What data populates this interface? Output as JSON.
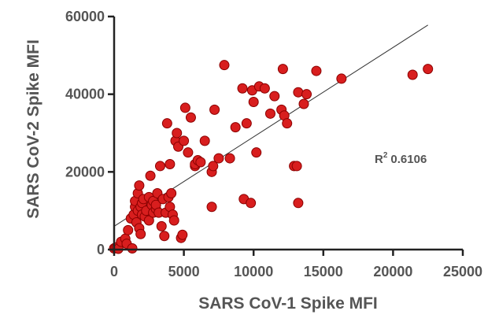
{
  "chart_data": {
    "type": "scatter",
    "title": "",
    "xlabel": "SARS CoV-1 Spike MFI",
    "ylabel": "SARS CoV-2 Spike MFI",
    "xlim": [
      0,
      25000
    ],
    "ylim": [
      0,
      60000
    ],
    "xticks": [
      0,
      5000,
      10000,
      15000,
      20000,
      25000
    ],
    "yticks": [
      0,
      20000,
      40000,
      60000
    ],
    "grid": false,
    "legend": "none",
    "annotation": {
      "r_label": "R",
      "r_sup": "2",
      "r_value": "0.6106"
    },
    "point_color": "#d81e1e",
    "line_color": "#333333",
    "fit_line": {
      "x": [
        0,
        22500
      ],
      "y": [
        6000,
        57800
      ]
    },
    "series": [
      {
        "x": [
          0,
          100,
          200,
          300,
          500,
          800,
          900,
          1000,
          1200,
          1300,
          1400,
          1500,
          1500,
          1600,
          1700,
          1700,
          1800,
          1800,
          1900,
          1900,
          2000,
          2000,
          2100,
          2200,
          2300,
          2500,
          2500,
          2600,
          2700,
          2800,
          2800,
          3000,
          3000,
          3100,
          3200,
          3300,
          3400,
          3500,
          3600,
          3700,
          3800,
          3900,
          4000,
          4000,
          4100,
          4200,
          4300,
          4400,
          4500,
          4600,
          4800,
          4900,
          5000,
          5100,
          5300,
          5500,
          5800,
          5800,
          6000,
          6200,
          6500,
          7000,
          7000,
          7100,
          7200,
          7500,
          7900,
          8300,
          8700,
          9200,
          9300,
          9500,
          9800,
          9900,
          10000,
          10200,
          10400,
          10800,
          11200,
          11500,
          12000,
          12100,
          12200,
          12400,
          12900,
          13100,
          13200,
          13200,
          13600,
          13800,
          14500,
          16300,
          21400,
          22500
        ],
        "y": [
          300,
          500,
          600,
          200,
          2000,
          2800,
          1500,
          5000,
          8000,
          300,
          9000,
          11000,
          12500,
          7000,
          14500,
          10000,
          16500,
          5500,
          11000,
          4000,
          9000,
          12000,
          13000,
          8500,
          10000,
          13500,
          7500,
          19000,
          11500,
          12500,
          9500,
          10500,
          11500,
          14500,
          9500,
          21500,
          6000,
          13000,
          3500,
          9500,
          32500,
          13500,
          22000,
          11000,
          14500,
          9000,
          7500,
          28000,
          30000,
          26500,
          3000,
          3800,
          28000,
          36500,
          25000,
          34000,
          21500,
          22000,
          23000,
          22500,
          28000,
          11000,
          20000,
          21500,
          36000,
          23500,
          47500,
          23500,
          31500,
          41500,
          13000,
          32500,
          12000,
          41000,
          38000,
          25000,
          42000,
          41500,
          35000,
          39500,
          36000,
          46500,
          34500,
          32500,
          21500,
          21500,
          40500,
          12000,
          37500,
          40000,
          46000,
          44000,
          45000,
          46500
        ]
      }
    ]
  }
}
